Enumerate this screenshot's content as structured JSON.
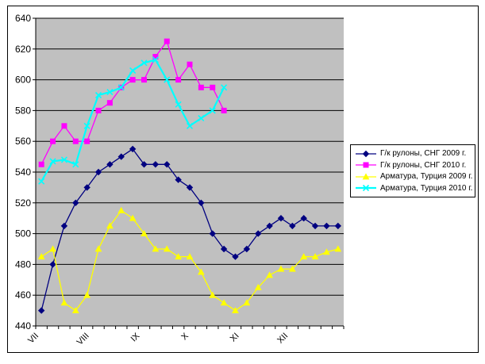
{
  "chart_data": {
    "type": "line",
    "title": "",
    "xlabel": "",
    "ylabel": "",
    "legend_position": "right",
    "grid": true,
    "plot": {
      "bg_color": "#c0c0c0",
      "grid_color": "#000000",
      "axis_color": "#000000"
    },
    "y_axis": {
      "min": 440,
      "max": 640,
      "step": 20,
      "tick_labels": [
        "440",
        "460",
        "480",
        "500",
        "520",
        "540",
        "560",
        "580",
        "600",
        "620",
        "640"
      ]
    },
    "x_axis": {
      "unit": "weeks",
      "total_weeks": 27,
      "month_labels": [
        "VII",
        "VIII",
        "IX",
        "X",
        "XI",
        "XII"
      ],
      "month_positions_weeks": [
        0,
        4.43,
        8.86,
        13.14,
        17.57,
        21.86
      ]
    },
    "series": [
      {
        "name": "Г/к рулоны, СНГ 2009 г.",
        "color": "#000080",
        "marker": "diamond",
        "line_width": 1.3,
        "values": [
          450,
          480,
          505,
          520,
          530,
          540,
          545,
          550,
          555,
          545,
          545,
          545,
          535,
          530,
          520,
          500,
          490,
          485,
          490,
          500,
          505,
          510,
          505,
          510,
          505,
          505,
          505
        ]
      },
      {
        "name": "Г/к рулоны, СНГ 2010 г.",
        "color": "#ff00ff",
        "marker": "square",
        "line_width": 1.3,
        "values": [
          545,
          560,
          570,
          560,
          560,
          580,
          585,
          595,
          600,
          600,
          615,
          625,
          600,
          610,
          595,
          595,
          580
        ]
      },
      {
        "name": "Арматура, Турция 2009 г.",
        "color": "#ffff00",
        "marker": "triangle",
        "line_width": 1.3,
        "values": [
          485,
          490,
          455,
          450,
          460,
          490,
          505,
          515,
          510,
          500,
          490,
          490,
          485,
          485,
          475,
          460,
          455,
          450,
          455,
          465,
          473,
          477,
          477,
          485,
          485,
          488,
          490
        ]
      },
      {
        "name": "Арматура, Турция 2010 г.",
        "color": "#00ffff",
        "marker": "x",
        "line_width": 2.2,
        "values": [
          534,
          547,
          548,
          545,
          570,
          590,
          592,
          595,
          606,
          611,
          613,
          600,
          584,
          570,
          575,
          580,
          595
        ]
      }
    ]
  }
}
